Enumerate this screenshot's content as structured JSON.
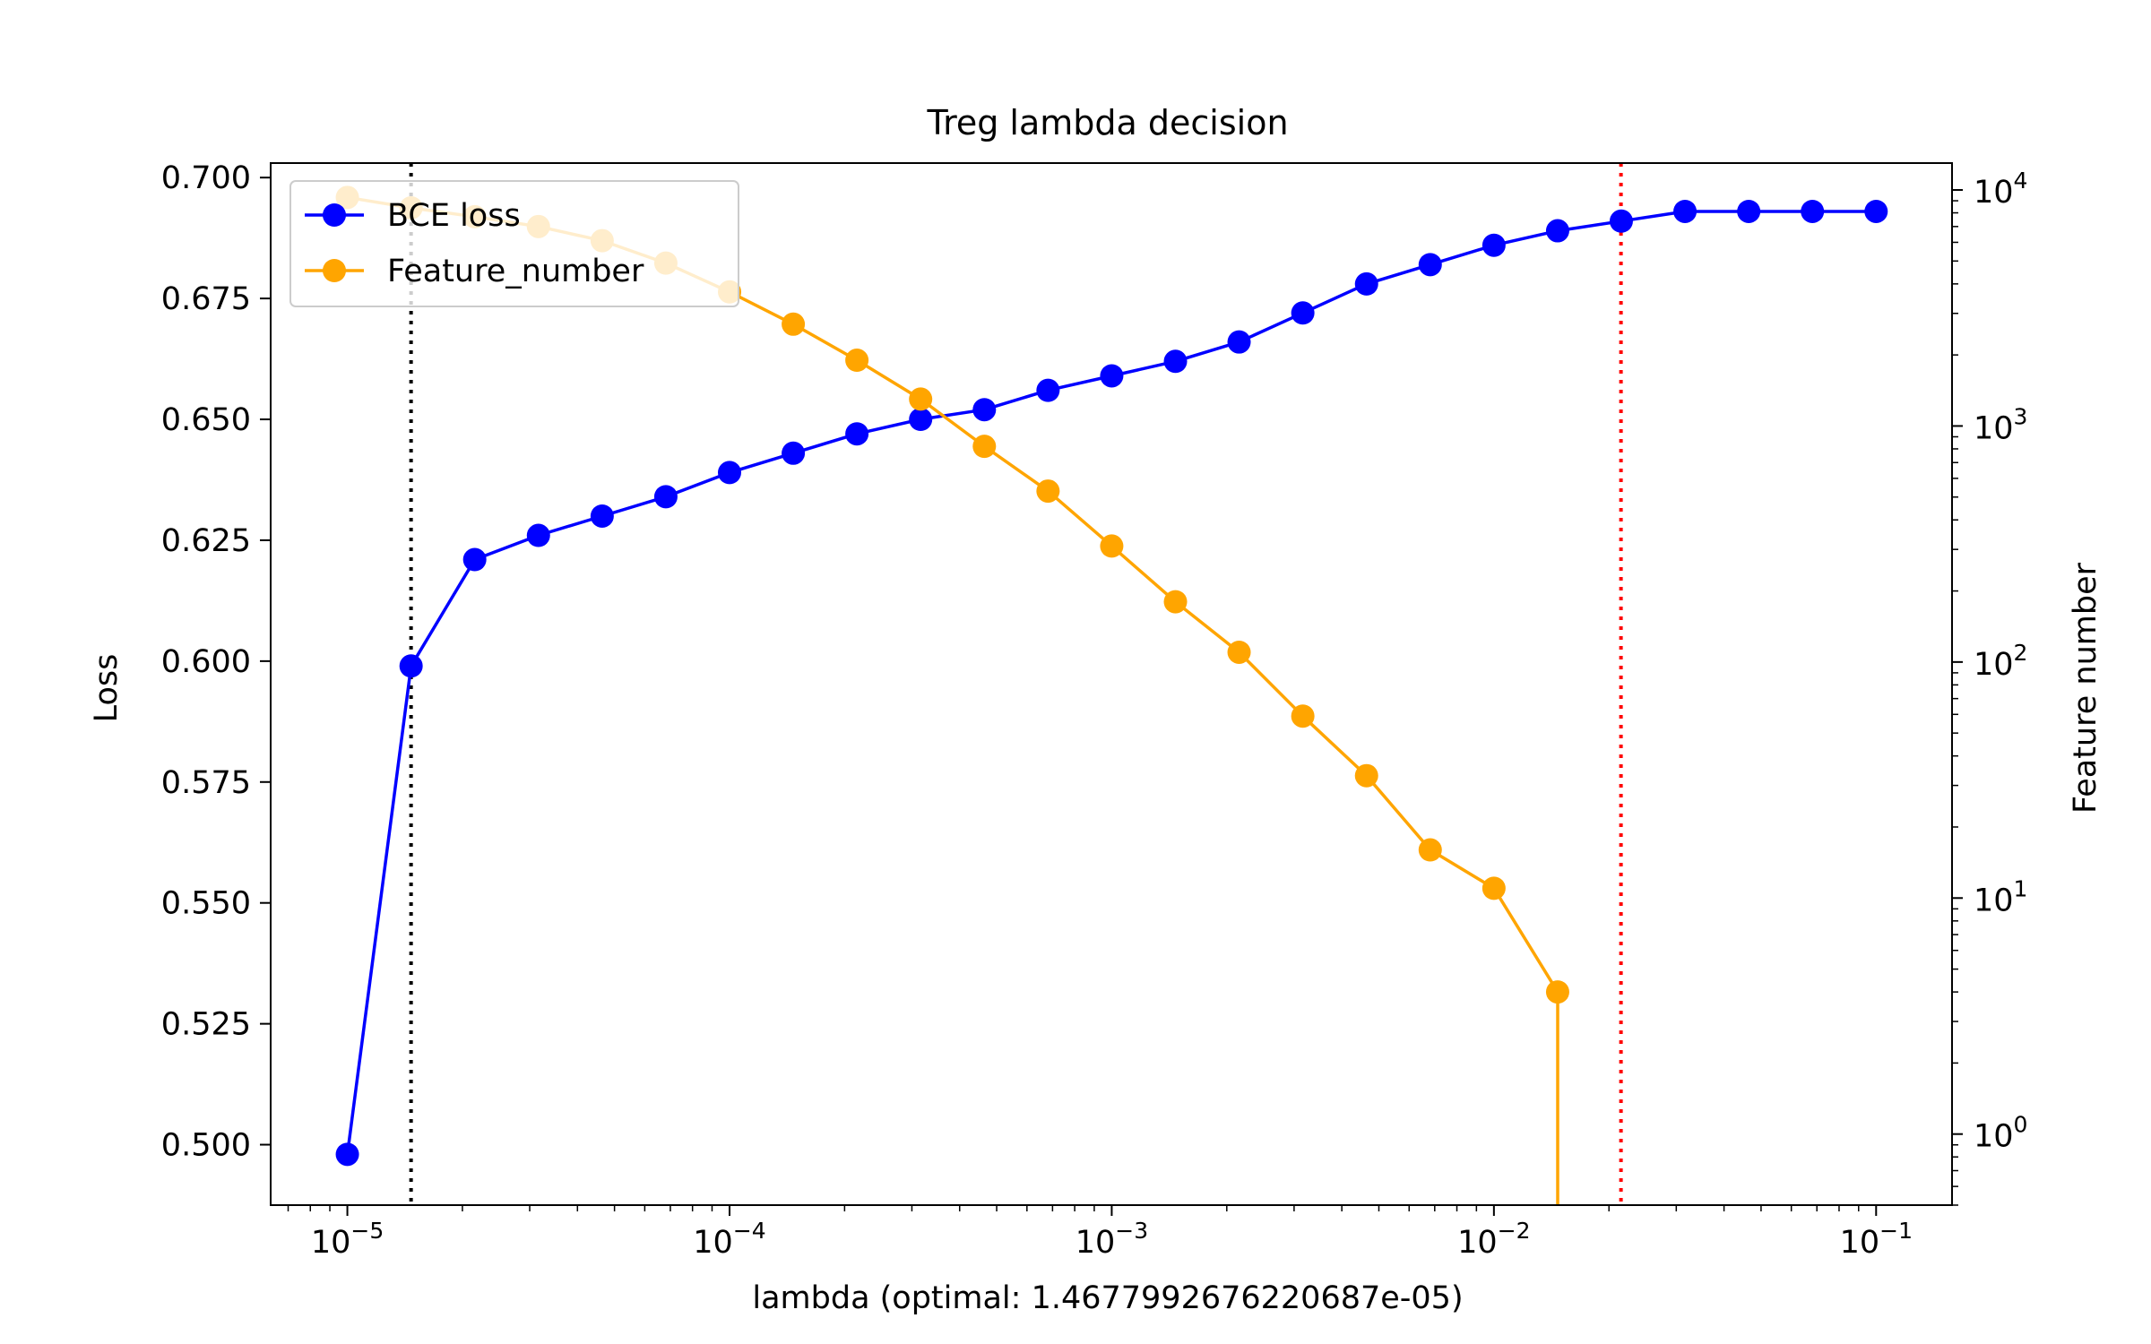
{
  "chart_data": {
    "type": "line",
    "title": "Treg lambda decision",
    "xlabel": "lambda (optimal: 1.4677992676220687e-05)",
    "ylabel": "Loss",
    "y2label": "Feature number",
    "xscale": "log",
    "xlim": [
      6.3e-06,
      0.158
    ],
    "ylim": [
      0.4875,
      0.703
    ],
    "y2scale": "log",
    "y2lim": [
      0.5,
      13000
    ],
    "x_ticks": [
      {
        "value": 1e-05,
        "base": "10",
        "exp": "−5"
      },
      {
        "value": 0.0001,
        "base": "10",
        "exp": "−4"
      },
      {
        "value": 0.001,
        "base": "10",
        "exp": "−3"
      },
      {
        "value": 0.01,
        "base": "10",
        "exp": "−2"
      },
      {
        "value": 0.1,
        "base": "10",
        "exp": "−1"
      }
    ],
    "y_ticks": [
      {
        "value": 0.5,
        "label": "0.500"
      },
      {
        "value": 0.525,
        "label": "0.525"
      },
      {
        "value": 0.55,
        "label": "0.550"
      },
      {
        "value": 0.575,
        "label": "0.575"
      },
      {
        "value": 0.6,
        "label": "0.600"
      },
      {
        "value": 0.625,
        "label": "0.625"
      },
      {
        "value": 0.65,
        "label": "0.650"
      },
      {
        "value": 0.675,
        "label": "0.675"
      },
      {
        "value": 0.7,
        "label": "0.700"
      }
    ],
    "y2_ticks": [
      {
        "value": 1,
        "base": "10",
        "exp": "0"
      },
      {
        "value": 10,
        "base": "10",
        "exp": "1"
      },
      {
        "value": 100,
        "base": "10",
        "exp": "2"
      },
      {
        "value": 1000,
        "base": "10",
        "exp": "3"
      },
      {
        "value": 10000,
        "base": "10",
        "exp": "4"
      }
    ],
    "vlines": [
      {
        "x": 1.4678e-05,
        "color": "#000000",
        "style": "dotted"
      },
      {
        "x": 0.0215,
        "color": "#ff0000",
        "style": "dotted"
      }
    ],
    "legend": {
      "position": "upper-left",
      "entries": [
        "BCE loss",
        "Feature_number"
      ]
    },
    "series": [
      {
        "name": "BCE loss",
        "axis": "left",
        "color": "#0000ff",
        "x": [
          1e-05,
          1.468e-05,
          2.154e-05,
          3.162e-05,
          4.642e-05,
          6.813e-05,
          0.0001,
          0.0001468,
          0.0002154,
          0.0003162,
          0.0004642,
          0.0006813,
          0.001,
          0.001468,
          0.002154,
          0.003162,
          0.004642,
          0.006813,
          0.01,
          0.01468,
          0.02154,
          0.03162,
          0.04642,
          0.06813,
          0.1
        ],
        "values": [
          0.498,
          0.599,
          0.621,
          0.626,
          0.63,
          0.634,
          0.639,
          0.643,
          0.647,
          0.65,
          0.652,
          0.656,
          0.659,
          0.662,
          0.666,
          0.672,
          0.678,
          0.682,
          0.686,
          0.689,
          0.691,
          0.693,
          0.693,
          0.693,
          0.693
        ]
      },
      {
        "name": "Feature_number",
        "axis": "right",
        "color": "#ffa500",
        "x": [
          1e-05,
          1.468e-05,
          2.154e-05,
          3.162e-05,
          4.642e-05,
          6.813e-05,
          0.0001,
          0.0001468,
          0.0002154,
          0.0003162,
          0.0004642,
          0.0006813,
          0.001,
          0.001468,
          0.002154,
          0.003162,
          0.004642,
          0.006813,
          0.01,
          0.01468
        ],
        "values": [
          9300,
          8400,
          7700,
          7000,
          6100,
          4900,
          3700,
          2700,
          1900,
          1300,
          820,
          530,
          310,
          180,
          110,
          59,
          33,
          16,
          11,
          4
        ],
        "drop_to": 0.5
      }
    ]
  }
}
